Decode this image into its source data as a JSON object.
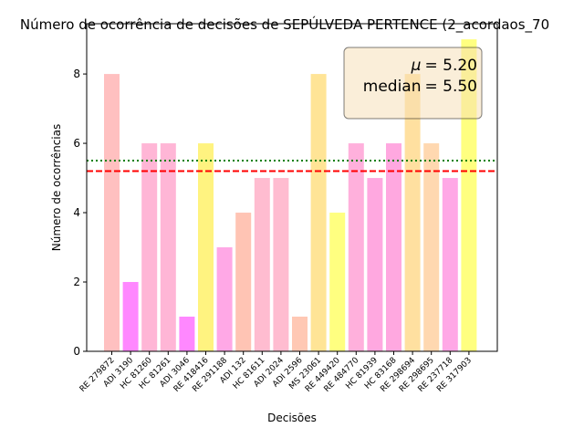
{
  "chart_data": {
    "type": "bar",
    "title": "Número de ocorrência de decisões de SEPÚLVEDA PERTENCE (2_acordaos_70",
    "xlabel": "Decisões",
    "ylabel": "Número de ocorrências",
    "ylim": [
      0,
      9.45
    ],
    "yticks": [
      0,
      2,
      4,
      6,
      8
    ],
    "grid": false,
    "categories": [
      "RE 279872",
      "ADI 3190",
      "HC 81260",
      "HC 81261",
      "ADI 3046",
      "RE 418416",
      "RE 291188",
      "ADI 132",
      "HC 81611",
      "ADI 2024",
      "ADI 2596",
      "MS 23061",
      "RE 449420",
      "RE 484770",
      "HC 81939",
      "HC 83168",
      "RE 298694",
      "RE 298695",
      "RE 237718",
      "RE 317903"
    ],
    "values": [
      8,
      2,
      6,
      6,
      1,
      6,
      3,
      4,
      5,
      5,
      1,
      8,
      4,
      6,
      5,
      6,
      8,
      6,
      5,
      9
    ],
    "colors": [
      "#ffc0c0",
      "#ff88ff",
      "#ffb6d6",
      "#ffb6d6",
      "#ff88ff",
      "#fff380",
      "#ffa8e6",
      "#ffc4b4",
      "#ffbcd0",
      "#ffbcd0",
      "#ffc8b4",
      "#ffe496",
      "#ffff80",
      "#ffb0dc",
      "#ffa8e0",
      "#ffa8e0",
      "#ffe0a0",
      "#ffd8b0",
      "#ffa8e6",
      "#ffff80"
    ],
    "mean": 5.2,
    "median": 5.5,
    "mean_color": "#ff0000",
    "median_color": "#008000",
    "legend_placement": "top-right",
    "stats_text": {
      "mu_symbol": "μ",
      "mean_value": "= 5.20",
      "median_label": "median",
      "median_value": "= 5.50"
    }
  }
}
